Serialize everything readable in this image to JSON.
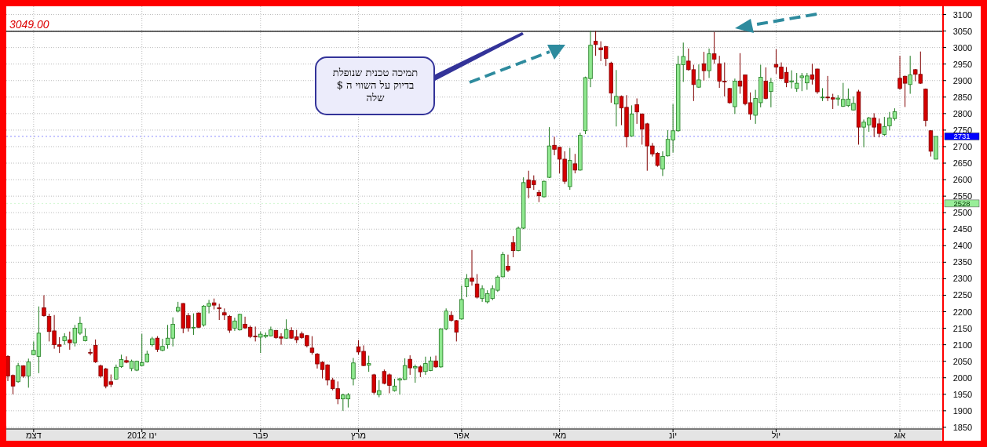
{
  "chart_data": {
    "type": "candlestick",
    "categories": [
      null,
      null,
      null,
      null,
      null,
      "דצמ",
      null,
      null,
      null,
      null,
      null,
      null,
      null,
      null,
      null,
      null,
      null,
      null,
      null,
      null,
      null,
      null,
      null,
      null,
      null,
      null,
      "ינו 2012",
      null,
      null,
      null,
      null,
      null,
      null,
      null,
      null,
      null,
      null,
      null,
      null,
      null,
      null,
      null,
      null,
      null,
      null,
      null,
      null,
      null,
      null,
      "פבר",
      null,
      null,
      null,
      null,
      null,
      null,
      null,
      null,
      null,
      null,
      null,
      null,
      null,
      null,
      null,
      null,
      null,
      null,
      "מרץ",
      null,
      null,
      null,
      null,
      null,
      null,
      null,
      null,
      null,
      null,
      null,
      null,
      null,
      null,
      null,
      null,
      null,
      null,
      null,
      "אפר",
      null,
      null,
      null,
      null,
      null,
      null,
      null,
      null,
      null,
      null,
      null,
      null,
      null,
      null,
      null,
      null,
      null,
      null,
      "מאי",
      null,
      null,
      null,
      null,
      null,
      null,
      null,
      null,
      null,
      null,
      null,
      null,
      null,
      null,
      null,
      null,
      null,
      null,
      null,
      null,
      null,
      "יונ",
      null,
      null,
      null,
      null,
      null,
      null,
      null,
      null,
      null,
      null,
      null,
      null,
      null,
      null,
      null,
      null,
      null,
      null,
      null,
      "יול",
      null,
      null,
      null,
      null,
      null,
      null,
      null,
      null,
      null,
      null,
      null,
      null,
      null,
      null,
      null,
      null,
      null,
      null,
      null,
      null,
      null,
      null,
      null,
      "אוג",
      null,
      null,
      null,
      null,
      null,
      null,
      null
    ],
    "ohlc": [
      [
        2065,
        2068,
        1990,
        2005
      ],
      [
        2007,
        2010,
        1950,
        1975
      ],
      [
        1988,
        2045,
        1985,
        2036
      ],
      [
        2036,
        2038,
        2000,
        2005
      ],
      [
        2005,
        2058,
        1970,
        2048
      ],
      [
        2070,
        2110,
        2068,
        2083
      ],
      [
        2065,
        2216,
        2014,
        2135
      ],
      [
        2212,
        2250,
        2185,
        2188
      ],
      [
        2186,
        2194,
        2110,
        2140
      ],
      [
        2142,
        2190,
        2088,
        2100
      ],
      [
        2100,
        2123,
        2075,
        2095
      ],
      [
        2112,
        2135,
        2100,
        2124
      ],
      [
        2115,
        2140,
        2085,
        2106
      ],
      [
        2106,
        2160,
        2095,
        2150
      ],
      [
        2135,
        2185,
        2130,
        2165
      ],
      [
        2112,
        2150,
        2110,
        2125
      ],
      [
        2077,
        2088,
        2068,
        2076
      ],
      [
        2098,
        2116,
        2045,
        2048
      ],
      [
        2036,
        2040,
        2000,
        2005
      ],
      [
        2027,
        2030,
        1968,
        1975
      ],
      [
        1988,
        2010,
        1972,
        1980
      ],
      [
        1996,
        2040,
        1994,
        2032
      ],
      [
        2034,
        2070,
        2030,
        2055
      ],
      [
        2052,
        2065,
        2044,
        2047
      ],
      [
        2028,
        2055,
        2020,
        2050
      ],
      [
        2023,
        2052,
        2020,
        2050
      ],
      [
        2037,
        2133,
        2035,
        2046
      ],
      [
        2048,
        2082,
        2046,
        2072
      ],
      [
        2100,
        2124,
        2095,
        2118
      ],
      [
        2120,
        2126,
        2078,
        2086
      ],
      [
        2083,
        2118,
        2080,
        2095
      ],
      [
        2100,
        2160,
        2088,
        2120
      ],
      [
        2120,
        2183,
        2095,
        2162
      ],
      [
        2202,
        2230,
        2198,
        2213
      ],
      [
        2225,
        2226,
        2135,
        2150
      ],
      [
        2188,
        2196,
        2140,
        2151
      ],
      [
        2151,
        2195,
        2130,
        2153
      ],
      [
        2196,
        2198,
        2150,
        2153
      ],
      [
        2160,
        2220,
        2155,
        2217
      ],
      [
        2217,
        2236,
        2195,
        2225
      ],
      [
        2227,
        2240,
        2207,
        2220
      ],
      [
        2212,
        2224,
        2175,
        2209
      ],
      [
        2197,
        2210,
        2175,
        2190
      ],
      [
        2186,
        2190,
        2136,
        2144
      ],
      [
        2150,
        2182,
        2142,
        2172
      ],
      [
        2145,
        2194,
        2143,
        2192
      ],
      [
        2162,
        2185,
        2148,
        2151
      ],
      [
        2153,
        2158,
        2120,
        2125
      ],
      [
        2126,
        2155,
        2110,
        2124
      ],
      [
        2123,
        2140,
        2075,
        2132
      ],
      [
        2125,
        2137,
        2120,
        2129
      ],
      [
        2127,
        2155,
        2125,
        2145
      ],
      [
        2143,
        2145,
        2118,
        2122
      ],
      [
        2124,
        2135,
        2100,
        2120
      ],
      [
        2120,
        2177,
        2118,
        2146
      ],
      [
        2143,
        2153,
        2118,
        2120
      ],
      [
        2124,
        2145,
        2105,
        2115
      ],
      [
        2133,
        2140,
        2118,
        2122
      ],
      [
        2128,
        2130,
        2092,
        2097
      ],
      [
        2090,
        2126,
        2070,
        2077
      ],
      [
        2072,
        2075,
        2028,
        2042
      ],
      [
        2047,
        2050,
        1998,
        2025
      ],
      [
        2039,
        2041,
        1977,
        1993
      ],
      [
        1993,
        2000,
        1962,
        1967
      ],
      [
        1967,
        1989,
        1920,
        1936
      ],
      [
        1936,
        1952,
        1900,
        1948
      ],
      [
        1936,
        1954,
        1910,
        1948
      ],
      [
        1997,
        2060,
        1977,
        2045
      ],
      [
        2094,
        2114,
        2070,
        2078
      ],
      [
        2080,
        2098,
        2035,
        2037
      ],
      [
        2038,
        2067,
        2018,
        2043
      ],
      [
        2009,
        2012,
        1949,
        1956
      ],
      [
        1949,
        1993,
        1941,
        1961
      ],
      [
        2019,
        2025,
        1980,
        1983
      ],
      [
        2009,
        2013,
        1953,
        1977
      ],
      [
        1961,
        1997,
        1958,
        1975
      ],
      [
        1993,
        2000,
        1949,
        1997
      ],
      [
        1995,
        2059,
        1993,
        2037
      ],
      [
        2056,
        2068,
        2009,
        2030
      ],
      [
        2030,
        2040,
        1985,
        2034
      ],
      [
        2033,
        2038,
        2002,
        2018
      ],
      [
        2019,
        2064,
        2009,
        2043
      ],
      [
        2022,
        2064,
        2020,
        2051
      ],
      [
        2051,
        2067,
        2030,
        2033
      ],
      [
        2033,
        2150,
        2030,
        2148
      ],
      [
        2148,
        2210,
        2144,
        2202
      ],
      [
        2189,
        2201,
        2170,
        2174
      ],
      [
        2173,
        2175,
        2110,
        2138
      ],
      [
        2178,
        2279,
        2176,
        2237
      ],
      [
        2276,
        2314,
        2244,
        2300
      ],
      [
        2302,
        2387,
        2279,
        2292
      ],
      [
        2284,
        2314,
        2240,
        2244
      ],
      [
        2240,
        2280,
        2230,
        2270
      ],
      [
        2230,
        2265,
        2225,
        2255
      ],
      [
        2240,
        2280,
        2235,
        2270
      ],
      [
        2265,
        2310,
        2260,
        2305
      ],
      [
        2306,
        2381,
        2304,
        2373
      ],
      [
        2338,
        2373,
        2320,
        2326
      ],
      [
        2409,
        2429,
        2365,
        2385
      ],
      [
        2385,
        2458,
        2383,
        2453
      ],
      [
        2453,
        2607,
        2450,
        2591
      ],
      [
        2599,
        2627,
        2544,
        2575
      ],
      [
        2597,
        2613,
        2569,
        2585
      ],
      [
        2561,
        2569,
        2532,
        2551
      ],
      [
        2548,
        2597,
        2546,
        2595
      ],
      [
        2607,
        2759,
        2605,
        2702
      ],
      [
        2704,
        2730,
        2674,
        2692
      ],
      [
        2698,
        2700,
        2619,
        2662
      ],
      [
        2662,
        2686,
        2587,
        2595
      ],
      [
        2579,
        2696,
        2569,
        2658
      ],
      [
        2648,
        2678,
        2619,
        2629
      ],
      [
        2629,
        2742,
        2627,
        2734
      ],
      [
        2748,
        2912,
        2738,
        2909
      ],
      [
        2906,
        3050,
        2880,
        3007
      ],
      [
        3019,
        3050,
        2975,
        3009
      ],
      [
        2999,
        3019,
        2959,
        2993
      ],
      [
        3003,
        3005,
        2944,
        2967
      ],
      [
        2953,
        2957,
        2833,
        2862
      ],
      [
        2829,
        2932,
        2761,
        2852
      ],
      [
        2852,
        2855,
        2765,
        2817
      ],
      [
        2819,
        2856,
        2698,
        2730
      ],
      [
        2732,
        2825,
        2730,
        2799
      ],
      [
        2827,
        2846,
        2769,
        2805
      ],
      [
        2799,
        2800,
        2706,
        2753
      ],
      [
        2769,
        2772,
        2627,
        2702
      ],
      [
        2702,
        2711,
        2670,
        2678
      ],
      [
        2680,
        2683,
        2639,
        2643
      ],
      [
        2632,
        2686,
        2611,
        2670
      ],
      [
        2672,
        2750,
        2670,
        2722
      ],
      [
        2720,
        2829,
        2682,
        2748
      ],
      [
        2748,
        2975,
        2745,
        2949
      ],
      [
        2948,
        3015,
        2896,
        2973
      ],
      [
        2959,
        2997,
        2930,
        2933
      ],
      [
        2933,
        2948,
        2838,
        2888
      ],
      [
        2880,
        2949,
        2878,
        2902
      ],
      [
        2951,
        2987,
        2900,
        2930
      ],
      [
        2930,
        2997,
        2908,
        2981
      ],
      [
        2981,
        3047,
        2951,
        2965
      ],
      [
        2951,
        2975,
        2878,
        2898
      ],
      [
        2898,
        2955,
        2852,
        2897
      ],
      [
        2876,
        2878,
        2830,
        2833
      ],
      [
        2821,
        2906,
        2799,
        2898
      ],
      [
        2898,
        2983,
        2860,
        2883
      ],
      [
        2917,
        2918,
        2825,
        2830
      ],
      [
        2833,
        2864,
        2781,
        2799
      ],
      [
        2795,
        2872,
        2769,
        2846
      ],
      [
        2833,
        2948,
        2819,
        2910
      ],
      [
        2898,
        2940,
        2843,
        2846
      ],
      [
        2867,
        2908,
        2819,
        2894
      ],
      [
        2949,
        2995,
        2920,
        2941
      ],
      [
        2941,
        2955,
        2904,
        2906
      ],
      [
        2925,
        2941,
        2880,
        2894
      ],
      [
        2896,
        2931,
        2876,
        2899
      ],
      [
        2876,
        2923,
        2866,
        2892
      ],
      [
        2909,
        2923,
        2868,
        2914
      ],
      [
        2893,
        2923,
        2872,
        2914
      ],
      [
        2917,
        2951,
        2888,
        2904
      ],
      [
        2935,
        2936,
        2860,
        2866
      ],
      [
        2849,
        2877,
        2838,
        2850
      ],
      [
        2850,
        2914,
        2838,
        2849
      ],
      [
        2848,
        2860,
        2814,
        2844
      ],
      [
        2844,
        2856,
        2824,
        2847
      ],
      [
        2822,
        2893,
        2820,
        2843
      ],
      [
        2824,
        2876,
        2820,
        2844
      ],
      [
        2811,
        2852,
        2810,
        2831
      ],
      [
        2866,
        2872,
        2706,
        2759
      ],
      [
        2759,
        2782,
        2698,
        2774
      ],
      [
        2766,
        2790,
        2745,
        2787
      ],
      [
        2787,
        2801,
        2729,
        2759
      ],
      [
        2769,
        2785,
        2728,
        2740
      ],
      [
        2737,
        2790,
        2732,
        2761
      ],
      [
        2763,
        2805,
        2749,
        2787
      ],
      [
        2785,
        2816,
        2779,
        2806
      ],
      [
        2907,
        2975,
        2872,
        2876
      ],
      [
        2913,
        2915,
        2820,
        2892
      ],
      [
        2888,
        2975,
        2860,
        2917
      ],
      [
        2933,
        2935,
        2898,
        2919
      ],
      [
        2919,
        2988,
        2890,
        2892
      ],
      [
        2874,
        2876,
        2761,
        2779
      ],
      [
        2748,
        2750,
        2670,
        2686
      ],
      [
        2662,
        2731,
        2662,
        2731
      ]
    ],
    "ylim": [
      1845,
      3125
    ],
    "yticks": [
      1850,
      1900,
      1950,
      2000,
      2050,
      2100,
      2150,
      2200,
      2250,
      2300,
      2350,
      2400,
      2450,
      2500,
      2550,
      2600,
      2650,
      2700,
      2750,
      2800,
      2850,
      2900,
      2950,
      3000,
      3050,
      3100
    ],
    "grid": true,
    "ref_lines": [
      {
        "axis": "y",
        "value": 3049,
        "label": "3049.00",
        "color": "#333333",
        "line_style": "solid"
      },
      {
        "axis": "y",
        "value": 2731,
        "label": "2731",
        "color": "#0000ff",
        "line_style": "none"
      },
      {
        "axis": "y",
        "value": 2528,
        "label": "2528",
        "color": "#99ee99",
        "line_style": "none"
      }
    ],
    "annotations": [
      "תמיכה טכנית שנופלת\nבדיוק על השווי ה $\nשלה"
    ]
  }
}
